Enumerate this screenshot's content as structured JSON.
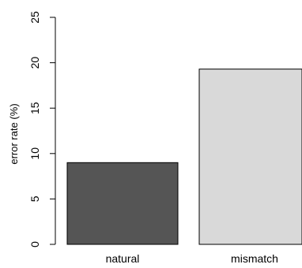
{
  "chart_data": {
    "type": "bar",
    "categories": [
      "natural",
      "mismatch"
    ],
    "values": [
      9.0,
      19.3
    ],
    "bar_colors": [
      "#555555",
      "#d9d9d9"
    ],
    "bar_border_color": "#000000",
    "xlabel": "",
    "ylabel": "error rate (%)",
    "ylim": [
      0,
      25
    ],
    "yticks": [
      0,
      5,
      10,
      15,
      20,
      25
    ],
    "grid": false,
    "legend": "none"
  }
}
